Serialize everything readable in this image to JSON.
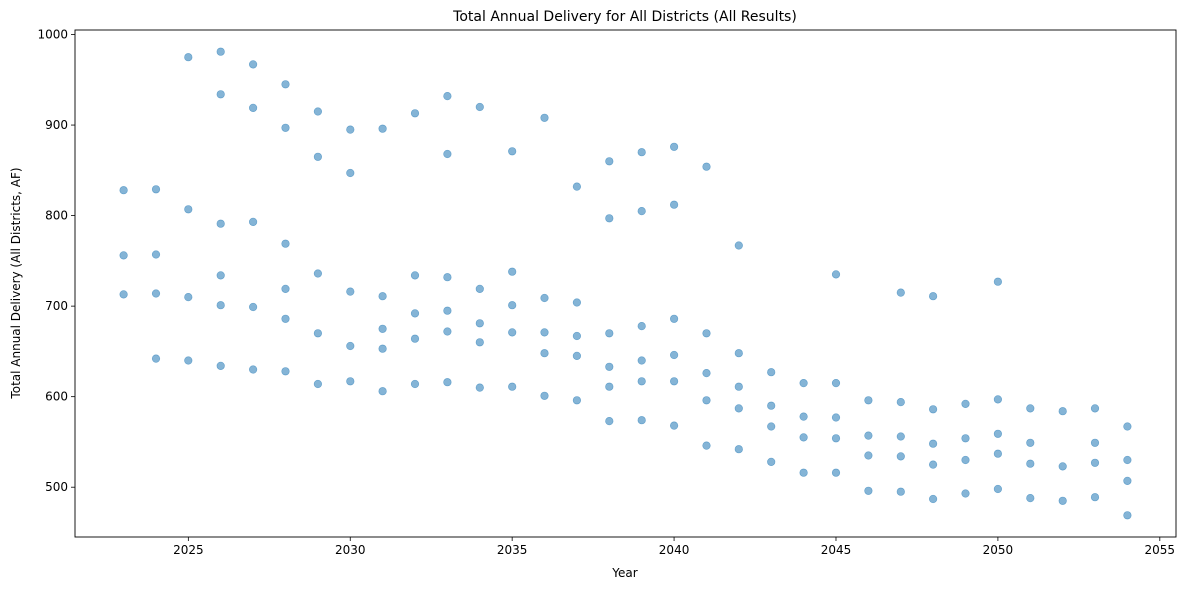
{
  "chart_data": {
    "type": "scatter",
    "title": "Total Annual Delivery for All Districts (All Results)",
    "xlabel": "Year",
    "ylabel": "Total Annual Delivery (All Districts, AF)",
    "xlim": [
      2021.5,
      2055.5
    ],
    "ylim": [
      445,
      1005
    ],
    "xticks": [
      "2025",
      "2030",
      "2035",
      "2040",
      "2045",
      "2050",
      "2055"
    ],
    "yticks": [
      "500",
      "600",
      "700",
      "800",
      "900",
      "1000"
    ],
    "grid": false,
    "legend": "none",
    "marker_color": "#1f77b4",
    "marker_alpha": 0.55,
    "points": [
      [
        2023,
        828
      ],
      [
        2023,
        756
      ],
      [
        2023,
        713
      ],
      [
        2024,
        829
      ],
      [
        2024,
        757
      ],
      [
        2024,
        714
      ],
      [
        2024,
        642
      ],
      [
        2025,
        975
      ],
      [
        2025,
        807
      ],
      [
        2025,
        710
      ],
      [
        2025,
        640
      ],
      [
        2026,
        981
      ],
      [
        2026,
        934
      ],
      [
        2026,
        791
      ],
      [
        2026,
        734
      ],
      [
        2026,
        701
      ],
      [
        2026,
        634
      ],
      [
        2027,
        967
      ],
      [
        2027,
        919
      ],
      [
        2027,
        793
      ],
      [
        2027,
        699
      ],
      [
        2027,
        630
      ],
      [
        2028,
        945
      ],
      [
        2028,
        897
      ],
      [
        2028,
        769
      ],
      [
        2028,
        719
      ],
      [
        2028,
        686
      ],
      [
        2028,
        628
      ],
      [
        2029,
        915
      ],
      [
        2029,
        865
      ],
      [
        2029,
        736
      ],
      [
        2029,
        670
      ],
      [
        2029,
        614
      ],
      [
        2030,
        895
      ],
      [
        2030,
        847
      ],
      [
        2030,
        716
      ],
      [
        2030,
        656
      ],
      [
        2030,
        617
      ],
      [
        2031,
        896
      ],
      [
        2031,
        711
      ],
      [
        2031,
        675
      ],
      [
        2031,
        653
      ],
      [
        2031,
        606
      ],
      [
        2032,
        913
      ],
      [
        2032,
        734
      ],
      [
        2032,
        692
      ],
      [
        2032,
        664
      ],
      [
        2032,
        614
      ],
      [
        2033,
        932
      ],
      [
        2033,
        868
      ],
      [
        2033,
        732
      ],
      [
        2033,
        695
      ],
      [
        2033,
        672
      ],
      [
        2033,
        616
      ],
      [
        2034,
        920
      ],
      [
        2034,
        719
      ],
      [
        2034,
        681
      ],
      [
        2034,
        660
      ],
      [
        2034,
        610
      ],
      [
        2035,
        871
      ],
      [
        2035,
        738
      ],
      [
        2035,
        701
      ],
      [
        2035,
        671
      ],
      [
        2035,
        611
      ],
      [
        2036,
        908
      ],
      [
        2036,
        709
      ],
      [
        2036,
        671
      ],
      [
        2036,
        648
      ],
      [
        2036,
        601
      ],
      [
        2037,
        832
      ],
      [
        2037,
        704
      ],
      [
        2037,
        667
      ],
      [
        2037,
        645
      ],
      [
        2037,
        596
      ],
      [
        2038,
        860
      ],
      [
        2038,
        797
      ],
      [
        2038,
        670
      ],
      [
        2038,
        633
      ],
      [
        2038,
        611
      ],
      [
        2038,
        573
      ],
      [
        2039,
        870
      ],
      [
        2039,
        805
      ],
      [
        2039,
        678
      ],
      [
        2039,
        640
      ],
      [
        2039,
        617
      ],
      [
        2039,
        574
      ],
      [
        2040,
        876
      ],
      [
        2040,
        812
      ],
      [
        2040,
        686
      ],
      [
        2040,
        646
      ],
      [
        2040,
        617
      ],
      [
        2040,
        568
      ],
      [
        2041,
        854
      ],
      [
        2041,
        670
      ],
      [
        2041,
        626
      ],
      [
        2041,
        596
      ],
      [
        2041,
        546
      ],
      [
        2042,
        767
      ],
      [
        2042,
        648
      ],
      [
        2042,
        611
      ],
      [
        2042,
        587
      ],
      [
        2042,
        542
      ],
      [
        2043,
        627
      ],
      [
        2043,
        590
      ],
      [
        2043,
        567
      ],
      [
        2043,
        528
      ],
      [
        2044,
        615
      ],
      [
        2044,
        578
      ],
      [
        2044,
        555
      ],
      [
        2044,
        516
      ],
      [
        2045,
        735
      ],
      [
        2045,
        615
      ],
      [
        2045,
        577
      ],
      [
        2045,
        554
      ],
      [
        2045,
        516
      ],
      [
        2046,
        596
      ],
      [
        2046,
        557
      ],
      [
        2046,
        535
      ],
      [
        2046,
        496
      ],
      [
        2047,
        715
      ],
      [
        2047,
        594
      ],
      [
        2047,
        556
      ],
      [
        2047,
        534
      ],
      [
        2047,
        495
      ],
      [
        2048,
        711
      ],
      [
        2048,
        586
      ],
      [
        2048,
        548
      ],
      [
        2048,
        525
      ],
      [
        2048,
        487
      ],
      [
        2049,
        592
      ],
      [
        2049,
        554
      ],
      [
        2049,
        530
      ],
      [
        2049,
        493
      ],
      [
        2050,
        727
      ],
      [
        2050,
        597
      ],
      [
        2050,
        559
      ],
      [
        2050,
        537
      ],
      [
        2050,
        498
      ],
      [
        2051,
        587
      ],
      [
        2051,
        549
      ],
      [
        2051,
        526
      ],
      [
        2051,
        488
      ],
      [
        2052,
        584
      ],
      [
        2052,
        523
      ],
      [
        2052,
        485
      ],
      [
        2053,
        587
      ],
      [
        2053,
        549
      ],
      [
        2053,
        527
      ],
      [
        2053,
        489
      ],
      [
        2054,
        567
      ],
      [
        2054,
        530
      ],
      [
        2054,
        507
      ],
      [
        2054,
        469
      ]
    ]
  }
}
